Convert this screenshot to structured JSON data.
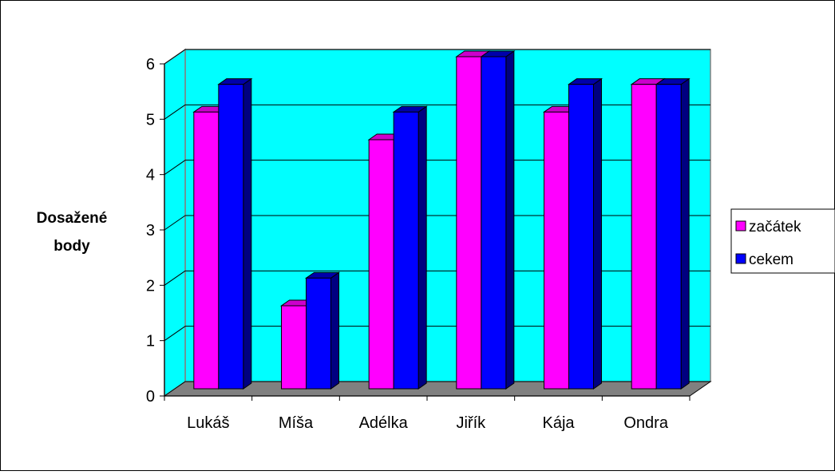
{
  "chart_data": {
    "type": "bar",
    "title": "",
    "xlabel": "",
    "ylabel": "Dosažené body",
    "ylabel_lines": [
      "Dosažené",
      "body"
    ],
    "categories": [
      "Lukáš",
      "Míša",
      "Adélka",
      "Jiřík",
      "Kája",
      "Ondra"
    ],
    "series": [
      {
        "name": "začátek",
        "values": [
          5,
          1.5,
          4.5,
          6,
          5,
          5.5
        ],
        "color": "#ff00ff"
      },
      {
        "name": "cekem",
        "values": [
          5.5,
          2,
          5,
          6,
          5.5,
          5.5
        ],
        "color": "#0000ff"
      }
    ],
    "ylim": [
      0,
      6
    ],
    "yticks": [
      0,
      1,
      2,
      3,
      4,
      5,
      6
    ],
    "grid": true,
    "legend_position": "right",
    "style": {
      "wall_color": "#00ffff",
      "floor_color": "#808080",
      "series_top_colors": [
        "#cc00cc",
        "#0000aa"
      ],
      "series_side_colors": [
        "#990099",
        "#000080"
      ]
    }
  }
}
